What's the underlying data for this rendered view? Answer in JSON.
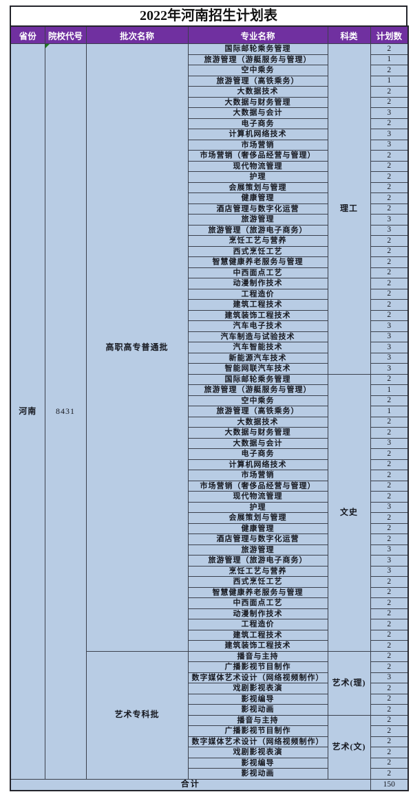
{
  "title": "2022年河南招生计划表",
  "columns": [
    "省份",
    "院校代号",
    "批次名称",
    "专业名称",
    "科类",
    "计划数"
  ],
  "province": "河南",
  "school_code": "8431",
  "batches": [
    {
      "name": "高职高专普通批",
      "groups": [
        {
          "category": "理工",
          "majors": [
            {
              "name": "国际邮轮乘务管理",
              "count": "2"
            },
            {
              "name": "旅游管理（游艇服务与管理）",
              "count": "1"
            },
            {
              "name": "空中乘务",
              "count": "2"
            },
            {
              "name": "旅游管理（高铁乘务）",
              "count": "1"
            },
            {
              "name": "大数据技术",
              "count": "2"
            },
            {
              "name": "大数据与财务管理",
              "count": "2"
            },
            {
              "name": "大数据与会计",
              "count": "3"
            },
            {
              "name": "电子商务",
              "count": "2"
            },
            {
              "name": "计算机网络技术",
              "count": "3"
            },
            {
              "name": "市场营销",
              "count": "3"
            },
            {
              "name": "市场营销（奢侈品经营与管理）",
              "count": "2"
            },
            {
              "name": "现代物流管理",
              "count": "2"
            },
            {
              "name": "护理",
              "count": "2"
            },
            {
              "name": "会展策划与管理",
              "count": "2"
            },
            {
              "name": "健康管理",
              "count": "2"
            },
            {
              "name": "酒店管理与数字化运营",
              "count": "2"
            },
            {
              "name": "旅游管理",
              "count": "3"
            },
            {
              "name": "旅游管理（旅游电子商务）",
              "count": "3"
            },
            {
              "name": "烹饪工艺与营养",
              "count": "2"
            },
            {
              "name": "西式烹饪工艺",
              "count": "2"
            },
            {
              "name": "智慧健康养老服务与管理",
              "count": "2"
            },
            {
              "name": "中西面点工艺",
              "count": "2"
            },
            {
              "name": "动漫制作技术",
              "count": "2"
            },
            {
              "name": "工程造价",
              "count": "2"
            },
            {
              "name": "建筑工程技术",
              "count": "2"
            },
            {
              "name": "建筑装饰工程技术",
              "count": "2"
            },
            {
              "name": "汽车电子技术",
              "count": "3"
            },
            {
              "name": "汽车制造与试验技术",
              "count": "3"
            },
            {
              "name": "汽车智能技术",
              "count": "3"
            },
            {
              "name": "新能源汽车技术",
              "count": "3"
            },
            {
              "name": "智能网联汽车技术",
              "count": "3"
            }
          ]
        },
        {
          "category": "文史",
          "majors": [
            {
              "name": "国际邮轮乘务管理",
              "count": "2"
            },
            {
              "name": "旅游管理（游艇服务与管理）",
              "count": "1"
            },
            {
              "name": "空中乘务",
              "count": "2"
            },
            {
              "name": "旅游管理（高铁乘务）",
              "count": "1"
            },
            {
              "name": "大数据技术",
              "count": "2"
            },
            {
              "name": "大数据与财务管理",
              "count": "2"
            },
            {
              "name": "大数据与会计",
              "count": "3"
            },
            {
              "name": "电子商务",
              "count": "2"
            },
            {
              "name": "计算机网络技术",
              "count": "2"
            },
            {
              "name": "市场营销",
              "count": "2"
            },
            {
              "name": "市场营销（奢侈品经营与管理）",
              "count": "2"
            },
            {
              "name": "现代物流管理",
              "count": "2"
            },
            {
              "name": "护理",
              "count": "3"
            },
            {
              "name": "会展策划与管理",
              "count": "2"
            },
            {
              "name": "健康管理",
              "count": "2"
            },
            {
              "name": "酒店管理与数字化运营",
              "count": "2"
            },
            {
              "name": "旅游管理",
              "count": "3"
            },
            {
              "name": "旅游管理（旅游电子商务）",
              "count": "3"
            },
            {
              "name": "烹饪工艺与营养",
              "count": "3"
            },
            {
              "name": "西式烹饪工艺",
              "count": "2"
            },
            {
              "name": "智慧健康养老服务与管理",
              "count": "2"
            },
            {
              "name": "中西面点工艺",
              "count": "2"
            },
            {
              "name": "动漫制作技术",
              "count": "2"
            },
            {
              "name": "工程造价",
              "count": "2"
            },
            {
              "name": "建筑工程技术",
              "count": "2"
            },
            {
              "name": "建筑装饰工程技术",
              "count": "2"
            }
          ]
        }
      ]
    },
    {
      "name": "艺术专科批",
      "groups": [
        {
          "category": "艺术(理)",
          "majors": [
            {
              "name": "播音与主持",
              "count": "2"
            },
            {
              "name": "广播影视节目制作",
              "count": "2"
            },
            {
              "name": "数字媒体艺术设计（网络视频制作）",
              "count": "3"
            },
            {
              "name": "戏剧影视表演",
              "count": "2"
            },
            {
              "name": "影视编导",
              "count": "2"
            },
            {
              "name": "影视动画",
              "count": "2"
            }
          ]
        },
        {
          "category": "艺术(文)",
          "majors": [
            {
              "name": "播音与主持",
              "count": "2"
            },
            {
              "name": "广播影视节目制作",
              "count": "2"
            },
            {
              "name": "数字媒体艺术设计（网络视频制作）",
              "count": "2"
            },
            {
              "name": "戏剧影视表演",
              "count": "2"
            },
            {
              "name": "影视编导",
              "count": "2"
            },
            {
              "name": "影视动画",
              "count": "2"
            }
          ]
        }
      ]
    }
  ],
  "footer": {
    "label": "合计",
    "total": "150"
  },
  "colors": {
    "header_bg": "#7030A0",
    "header_text": "#FFFFFF",
    "cell_bg": "#B8CCE4",
    "border": "#3A3F4B",
    "error_indicator": "#1E7A1E"
  }
}
